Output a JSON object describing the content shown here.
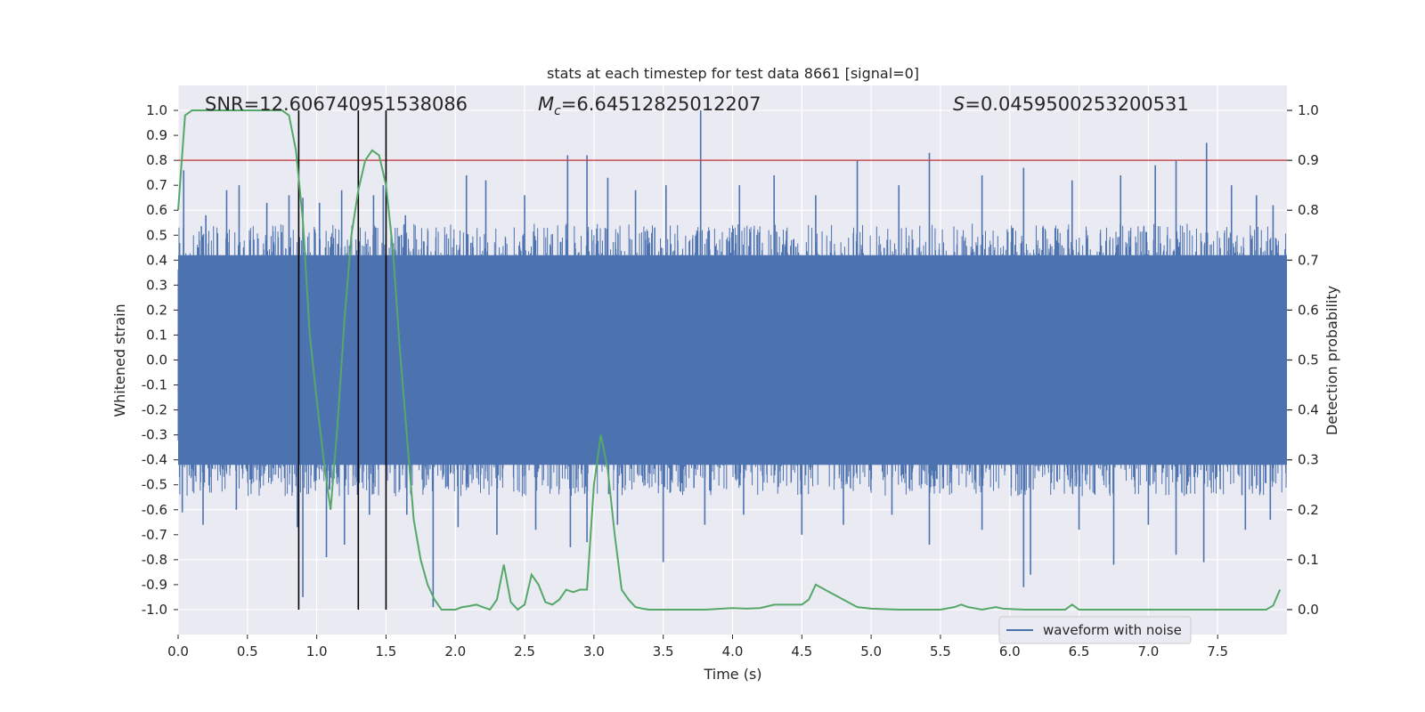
{
  "chart_data": {
    "type": "line",
    "title": "stats at each timestep for test data 8661 [signal=0]",
    "xlabel": "Time (s)",
    "ylabel": "Whitened strain",
    "ylabel_right": "Detection probability",
    "xlim": [
      0.0,
      8.0
    ],
    "ylim": [
      -1.1,
      1.1
    ],
    "ylim_right": [
      -0.05,
      1.05
    ],
    "x_ticks": [
      "0.0",
      "0.5",
      "1.0",
      "1.5",
      "2.0",
      "2.5",
      "3.0",
      "3.5",
      "4.0",
      "4.5",
      "5.0",
      "5.5",
      "6.0",
      "6.5",
      "7.0",
      "7.5"
    ],
    "y_ticks": [
      "1.0",
      "0.9",
      "0.8",
      "0.7",
      "0.6",
      "0.5",
      "0.4",
      "0.3",
      "0.2",
      "0.1",
      "0.0",
      "-0.1",
      "-0.2",
      "-0.3",
      "-0.4",
      "-0.5",
      "-0.6",
      "-0.7",
      "-0.8",
      "-0.9",
      "-1.0"
    ],
    "y_ticks_right": [
      "1.0",
      "0.9",
      "0.8",
      "0.7",
      "0.6",
      "0.5",
      "0.4",
      "0.3",
      "0.2",
      "0.1",
      "0.0"
    ],
    "grid": true,
    "legend": {
      "position": "bottom-right",
      "entries": [
        {
          "label": "waveform with noise",
          "color": "#4c72b0"
        }
      ]
    },
    "annotations": {
      "snr": "SNR=12.606740951538086",
      "mc_symbol": "M",
      "mc_subscript": "c",
      "mc_value": "=6.64512825012207",
      "s_symbol": "S",
      "s_value": "=0.0459500253200531"
    },
    "threshold_line": {
      "y": 0.8,
      "color": "#c44e52"
    },
    "vertical_lines": {
      "x": [
        0.87,
        1.3,
        1.5
      ],
      "y_range": [
        -1.0,
        1.0
      ],
      "color": "#000000"
    },
    "waveform": {
      "name": "waveform with noise",
      "color": "#4c72b0",
      "band": 0.42,
      "spikes": [
        {
          "x": 0.04,
          "y": 0.76
        },
        {
          "x": 0.2,
          "y": 0.58
        },
        {
          "x": 0.35,
          "y": 0.68
        },
        {
          "x": 0.44,
          "y": 0.7
        },
        {
          "x": 0.64,
          "y": 0.63
        },
        {
          "x": 0.8,
          "y": 0.66
        },
        {
          "x": 0.9,
          "y": 0.65
        },
        {
          "x": 1.02,
          "y": 0.63
        },
        {
          "x": 1.18,
          "y": 0.68
        },
        {
          "x": 1.41,
          "y": 0.66
        },
        {
          "x": 1.48,
          "y": 0.7
        },
        {
          "x": 1.64,
          "y": 0.58
        },
        {
          "x": 2.08,
          "y": 0.74
        },
        {
          "x": 2.22,
          "y": 0.72
        },
        {
          "x": 2.5,
          "y": 0.66
        },
        {
          "x": 2.81,
          "y": 0.82
        },
        {
          "x": 2.95,
          "y": 0.82
        },
        {
          "x": 3.1,
          "y": 0.73
        },
        {
          "x": 3.3,
          "y": 0.68
        },
        {
          "x": 3.52,
          "y": 0.7
        },
        {
          "x": 3.77,
          "y": 1.0
        },
        {
          "x": 4.05,
          "y": 0.7
        },
        {
          "x": 4.3,
          "y": 0.74
        },
        {
          "x": 4.6,
          "y": 0.66
        },
        {
          "x": 4.9,
          "y": 0.8
        },
        {
          "x": 5.2,
          "y": 0.7
        },
        {
          "x": 5.42,
          "y": 0.83
        },
        {
          "x": 5.8,
          "y": 0.74
        },
        {
          "x": 6.1,
          "y": 0.77
        },
        {
          "x": 6.45,
          "y": 0.72
        },
        {
          "x": 6.8,
          "y": 0.74
        },
        {
          "x": 7.05,
          "y": 0.78
        },
        {
          "x": 7.2,
          "y": 0.8
        },
        {
          "x": 7.42,
          "y": 0.87
        },
        {
          "x": 7.6,
          "y": 0.7
        },
        {
          "x": 7.78,
          "y": 0.66
        },
        {
          "x": 7.9,
          "y": 0.62
        },
        {
          "x": 0.03,
          "y": -0.61
        },
        {
          "x": 0.18,
          "y": -0.66
        },
        {
          "x": 0.42,
          "y": -0.6
        },
        {
          "x": 0.86,
          "y": -0.67
        },
        {
          "x": 0.9,
          "y": -0.95
        },
        {
          "x": 1.07,
          "y": -0.79
        },
        {
          "x": 1.2,
          "y": -0.74
        },
        {
          "x": 1.38,
          "y": -0.62
        },
        {
          "x": 1.65,
          "y": -0.62
        },
        {
          "x": 1.84,
          "y": -0.99
        },
        {
          "x": 2.02,
          "y": -0.67
        },
        {
          "x": 2.3,
          "y": -0.7
        },
        {
          "x": 2.58,
          "y": -0.68
        },
        {
          "x": 2.83,
          "y": -0.75
        },
        {
          "x": 2.95,
          "y": -0.73
        },
        {
          "x": 3.17,
          "y": -0.66
        },
        {
          "x": 3.5,
          "y": -0.81
        },
        {
          "x": 3.8,
          "y": -0.66
        },
        {
          "x": 4.08,
          "y": -0.62
        },
        {
          "x": 4.5,
          "y": -0.7
        },
        {
          "x": 4.8,
          "y": -0.66
        },
        {
          "x": 5.15,
          "y": -0.62
        },
        {
          "x": 5.42,
          "y": -0.74
        },
        {
          "x": 5.8,
          "y": -0.68
        },
        {
          "x": 6.1,
          "y": -0.91
        },
        {
          "x": 6.15,
          "y": -0.86
        },
        {
          "x": 6.5,
          "y": -0.68
        },
        {
          "x": 6.75,
          "y": -0.82
        },
        {
          "x": 7.0,
          "y": -0.66
        },
        {
          "x": 7.2,
          "y": -0.78
        },
        {
          "x": 7.4,
          "y": -0.81
        },
        {
          "x": 7.7,
          "y": -0.68
        },
        {
          "x": 7.88,
          "y": -0.64
        }
      ]
    },
    "probability": {
      "name": "detection probability",
      "color": "#55a868",
      "x": [
        0.0,
        0.05,
        0.1,
        0.15,
        0.2,
        0.3,
        0.4,
        0.5,
        0.6,
        0.7,
        0.75,
        0.8,
        0.85,
        0.9,
        0.95,
        1.0,
        1.05,
        1.1,
        1.15,
        1.2,
        1.25,
        1.3,
        1.35,
        1.4,
        1.45,
        1.5,
        1.55,
        1.6,
        1.65,
        1.7,
        1.75,
        1.8,
        1.85,
        1.9,
        2.0,
        2.05,
        2.1,
        2.15,
        2.2,
        2.25,
        2.3,
        2.35,
        2.4,
        2.45,
        2.5,
        2.55,
        2.6,
        2.65,
        2.7,
        2.75,
        2.8,
        2.85,
        2.9,
        2.95,
        3.0,
        3.05,
        3.1,
        3.15,
        3.2,
        3.25,
        3.3,
        3.35,
        3.4,
        3.5,
        3.6,
        3.8,
        4.0,
        4.1,
        4.2,
        4.3,
        4.4,
        4.5,
        4.55,
        4.6,
        4.7,
        4.8,
        4.9,
        5.0,
        5.2,
        5.3,
        5.4,
        5.5,
        5.6,
        5.65,
        5.7,
        5.8,
        5.9,
        5.95,
        6.1,
        6.4,
        6.45,
        6.5,
        6.6,
        6.7,
        6.9,
        7.0,
        7.2,
        7.4,
        7.5,
        7.6,
        7.8,
        7.85,
        7.9,
        7.95
      ],
      "y": [
        0.8,
        0.99,
        1.0,
        1.0,
        1.0,
        1.0,
        1.0,
        1.0,
        1.0,
        1.0,
        1.0,
        0.99,
        0.92,
        0.78,
        0.55,
        0.42,
        0.3,
        0.2,
        0.37,
        0.58,
        0.75,
        0.84,
        0.9,
        0.92,
        0.91,
        0.85,
        0.72,
        0.52,
        0.35,
        0.18,
        0.1,
        0.05,
        0.02,
        0.0,
        0.0,
        0.005,
        0.007,
        0.01,
        0.005,
        0.0,
        0.02,
        0.09,
        0.015,
        0.0,
        0.01,
        0.07,
        0.05,
        0.015,
        0.01,
        0.02,
        0.04,
        0.035,
        0.04,
        0.04,
        0.25,
        0.35,
        0.28,
        0.15,
        0.04,
        0.02,
        0.005,
        0.002,
        0.0,
        0.0,
        0.0,
        0.0,
        0.003,
        0.002,
        0.003,
        0.01,
        0.01,
        0.01,
        0.02,
        0.05,
        0.035,
        0.02,
        0.005,
        0.002,
        0.0,
        0.0,
        0.0,
        0.0,
        0.005,
        0.01,
        0.005,
        0.0,
        0.005,
        0.002,
        0.0,
        0.0,
        0.01,
        0.0,
        0.0,
        0.0,
        0.0,
        0.0,
        0.0,
        0.0,
        0.0,
        0.0,
        0.0,
        0.0,
        0.008,
        0.04
      ]
    }
  }
}
